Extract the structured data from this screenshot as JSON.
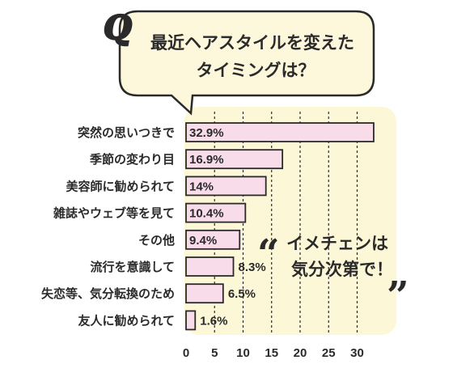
{
  "question": {
    "letter": "Q",
    "line1": "最近ヘアスタイルを変えた",
    "line2": "タイミングは？"
  },
  "callout": {
    "open_quote": "“",
    "close_quote": "”",
    "line1": "イメチェンは",
    "line2": "気分次第で！"
  },
  "colors": {
    "panel": "#fcf7d6",
    "bar": "#f9dcea",
    "bar_stroke": "#2a2a2a",
    "bubble": "#fdf8dc",
    "grid": "#2a2a2a"
  },
  "chart_data": {
    "type": "bar",
    "orientation": "horizontal",
    "categories": [
      "突然の思いつきで",
      "季節の変わり目",
      "美容師に勧められて",
      "雑誌やウェブ等を見て",
      "その他",
      "流行を意識して",
      "失恋等、気分転換のため",
      "友人に勧められて"
    ],
    "values": [
      32.9,
      16.9,
      14,
      10.4,
      9.4,
      8.3,
      6.5,
      1.6
    ],
    "value_labels": [
      "32.9%",
      "16.9%",
      "14%",
      "10.4%",
      "9.4%",
      "8.3%",
      "6.5%",
      "1.6%"
    ],
    "x_ticks": [
      "0",
      "5",
      "10",
      "15",
      "20",
      "25",
      "30"
    ],
    "xlim": [
      0,
      35
    ],
    "unit": "%",
    "grid": "vertical dashed"
  }
}
